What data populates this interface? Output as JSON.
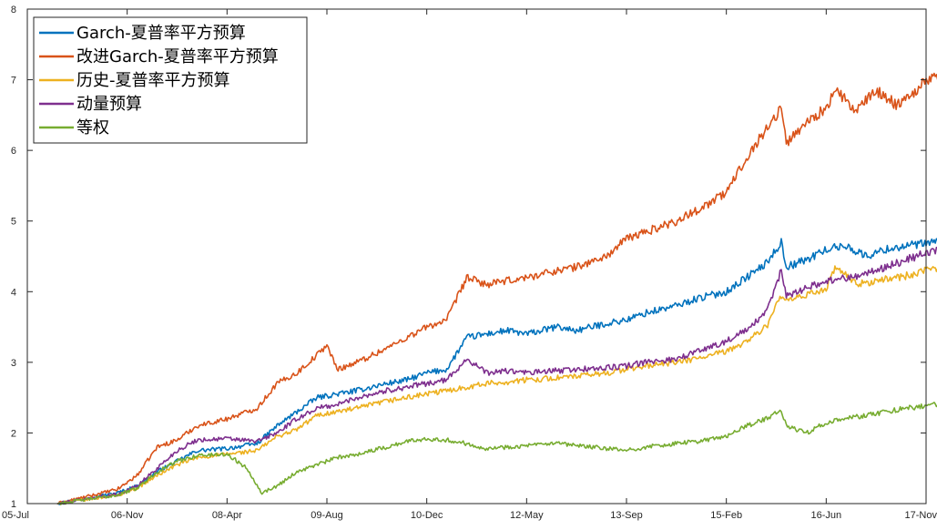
{
  "chart_data": {
    "type": "line",
    "title": "",
    "xlabel": "",
    "ylabel": "",
    "x_ticks": [
      "05-Jul",
      "06-Nov",
      "08-Apr",
      "09-Aug",
      "10-Dec",
      "12-May",
      "13-Sep",
      "15-Feb",
      "16-Jun",
      "17-Nov"
    ],
    "y_ticks": [
      "1",
      "2",
      "3",
      "4",
      "5",
      "6",
      "7",
      "8"
    ],
    "xlim": [
      0,
      9
    ],
    "ylim": [
      1,
      8
    ],
    "grid": false,
    "legend_position": "top-left",
    "series": [
      {
        "name": "Garch-夏普率平方预算",
        "color": "#0072BD",
        "points": [
          [
            0.3,
            1.0
          ],
          [
            0.6,
            1.08
          ],
          [
            0.9,
            1.15
          ],
          [
            1.1,
            1.25
          ],
          [
            1.3,
            1.45
          ],
          [
            1.5,
            1.6
          ],
          [
            1.7,
            1.75
          ],
          [
            2.0,
            1.78
          ],
          [
            2.3,
            1.85
          ],
          [
            2.5,
            2.1
          ],
          [
            2.7,
            2.3
          ],
          [
            2.9,
            2.5
          ],
          [
            3.1,
            2.55
          ],
          [
            3.3,
            2.6
          ],
          [
            3.6,
            2.7
          ],
          [
            3.8,
            2.75
          ],
          [
            4.0,
            2.85
          ],
          [
            4.2,
            2.9
          ],
          [
            4.4,
            3.35
          ],
          [
            4.6,
            3.4
          ],
          [
            4.8,
            3.45
          ],
          [
            5.0,
            3.4
          ],
          [
            5.3,
            3.5
          ],
          [
            5.5,
            3.45
          ],
          [
            5.8,
            3.55
          ],
          [
            6.0,
            3.6
          ],
          [
            6.2,
            3.7
          ],
          [
            6.5,
            3.8
          ],
          [
            6.7,
            3.9
          ],
          [
            7.0,
            4.0
          ],
          [
            7.2,
            4.2
          ],
          [
            7.4,
            4.4
          ],
          [
            7.55,
            4.7
          ],
          [
            7.6,
            4.35
          ],
          [
            7.8,
            4.45
          ],
          [
            8.0,
            4.6
          ],
          [
            8.2,
            4.65
          ],
          [
            8.4,
            4.5
          ],
          [
            8.6,
            4.6
          ],
          [
            8.8,
            4.65
          ],
          [
            9.0,
            4.68
          ],
          [
            9.15,
            4.72
          ]
        ]
      },
      {
        "name": "改进Garch-夏普率平方预算",
        "color": "#D95319",
        "points": [
          [
            0.3,
            1.0
          ],
          [
            0.6,
            1.1
          ],
          [
            0.9,
            1.2
          ],
          [
            1.1,
            1.4
          ],
          [
            1.3,
            1.8
          ],
          [
            1.5,
            1.9
          ],
          [
            1.7,
            2.1
          ],
          [
            2.0,
            2.2
          ],
          [
            2.3,
            2.35
          ],
          [
            2.5,
            2.7
          ],
          [
            2.7,
            2.85
          ],
          [
            2.9,
            3.1
          ],
          [
            3.0,
            3.25
          ],
          [
            3.1,
            2.9
          ],
          [
            3.3,
            3.0
          ],
          [
            3.6,
            3.2
          ],
          [
            3.8,
            3.35
          ],
          [
            4.0,
            3.5
          ],
          [
            4.2,
            3.6
          ],
          [
            4.4,
            4.2
          ],
          [
            4.6,
            4.1
          ],
          [
            4.8,
            4.15
          ],
          [
            5.0,
            4.2
          ],
          [
            5.3,
            4.3
          ],
          [
            5.5,
            4.35
          ],
          [
            5.8,
            4.5
          ],
          [
            6.0,
            4.75
          ],
          [
            6.2,
            4.85
          ],
          [
            6.5,
            5.0
          ],
          [
            6.7,
            5.15
          ],
          [
            7.0,
            5.4
          ],
          [
            7.2,
            5.9
          ],
          [
            7.4,
            6.3
          ],
          [
            7.55,
            6.6
          ],
          [
            7.6,
            6.1
          ],
          [
            7.8,
            6.4
          ],
          [
            8.0,
            6.6
          ],
          [
            8.1,
            6.85
          ],
          [
            8.3,
            6.55
          ],
          [
            8.5,
            6.85
          ],
          [
            8.7,
            6.65
          ],
          [
            8.9,
            6.85
          ],
          [
            9.0,
            7.0
          ],
          [
            9.15,
            7.05
          ]
        ]
      },
      {
        "name": "历史-夏普率平方预算",
        "color": "#EDB120",
        "points": [
          [
            0.3,
            1.0
          ],
          [
            0.6,
            1.06
          ],
          [
            0.9,
            1.12
          ],
          [
            1.1,
            1.22
          ],
          [
            1.3,
            1.4
          ],
          [
            1.5,
            1.55
          ],
          [
            1.7,
            1.65
          ],
          [
            2.0,
            1.7
          ],
          [
            2.3,
            1.75
          ],
          [
            2.5,
            1.95
          ],
          [
            2.7,
            2.05
          ],
          [
            2.9,
            2.25
          ],
          [
            3.1,
            2.3
          ],
          [
            3.3,
            2.35
          ],
          [
            3.6,
            2.45
          ],
          [
            3.8,
            2.5
          ],
          [
            4.0,
            2.55
          ],
          [
            4.2,
            2.6
          ],
          [
            4.4,
            2.65
          ],
          [
            4.6,
            2.7
          ],
          [
            4.8,
            2.72
          ],
          [
            5.0,
            2.75
          ],
          [
            5.3,
            2.78
          ],
          [
            5.5,
            2.8
          ],
          [
            5.8,
            2.85
          ],
          [
            6.0,
            2.9
          ],
          [
            6.2,
            2.95
          ],
          [
            6.5,
            3.0
          ],
          [
            6.7,
            3.05
          ],
          [
            7.0,
            3.15
          ],
          [
            7.2,
            3.3
          ],
          [
            7.4,
            3.5
          ],
          [
            7.55,
            3.95
          ],
          [
            7.6,
            3.85
          ],
          [
            7.8,
            3.95
          ],
          [
            8.0,
            4.05
          ],
          [
            8.1,
            4.35
          ],
          [
            8.3,
            4.1
          ],
          [
            8.5,
            4.15
          ],
          [
            8.7,
            4.2
          ],
          [
            8.9,
            4.25
          ],
          [
            9.0,
            4.3
          ],
          [
            9.15,
            4.33
          ]
        ]
      },
      {
        "name": "动量预算",
        "color": "#7E2F8E",
        "points": [
          [
            0.3,
            1.0
          ],
          [
            0.6,
            1.07
          ],
          [
            0.9,
            1.13
          ],
          [
            1.1,
            1.25
          ],
          [
            1.3,
            1.5
          ],
          [
            1.5,
            1.75
          ],
          [
            1.7,
            1.9
          ],
          [
            2.0,
            1.92
          ],
          [
            2.3,
            1.88
          ],
          [
            2.5,
            2.0
          ],
          [
            2.7,
            2.2
          ],
          [
            2.9,
            2.35
          ],
          [
            3.1,
            2.4
          ],
          [
            3.3,
            2.5
          ],
          [
            3.6,
            2.6
          ],
          [
            3.8,
            2.65
          ],
          [
            4.0,
            2.7
          ],
          [
            4.2,
            2.75
          ],
          [
            4.4,
            3.05
          ],
          [
            4.6,
            2.85
          ],
          [
            4.8,
            2.88
          ],
          [
            5.0,
            2.85
          ],
          [
            5.3,
            2.88
          ],
          [
            5.5,
            2.9
          ],
          [
            5.8,
            2.92
          ],
          [
            6.0,
            2.95
          ],
          [
            6.2,
            3.0
          ],
          [
            6.5,
            3.05
          ],
          [
            6.7,
            3.15
          ],
          [
            7.0,
            3.3
          ],
          [
            7.2,
            3.45
          ],
          [
            7.4,
            3.7
          ],
          [
            7.55,
            4.3
          ],
          [
            7.6,
            3.95
          ],
          [
            7.8,
            4.05
          ],
          [
            8.0,
            4.15
          ],
          [
            8.2,
            4.2
          ],
          [
            8.4,
            4.25
          ],
          [
            8.6,
            4.35
          ],
          [
            8.8,
            4.45
          ],
          [
            9.0,
            4.55
          ],
          [
            9.15,
            4.6
          ]
        ]
      },
      {
        "name": "等权",
        "color": "#77AC30",
        "points": [
          [
            0.3,
            1.0
          ],
          [
            0.6,
            1.06
          ],
          [
            0.9,
            1.12
          ],
          [
            1.1,
            1.22
          ],
          [
            1.3,
            1.45
          ],
          [
            1.5,
            1.6
          ],
          [
            1.7,
            1.68
          ],
          [
            2.0,
            1.7
          ],
          [
            2.2,
            1.5
          ],
          [
            2.35,
            1.15
          ],
          [
            2.5,
            1.25
          ],
          [
            2.7,
            1.45
          ],
          [
            2.9,
            1.55
          ],
          [
            3.1,
            1.65
          ],
          [
            3.3,
            1.7
          ],
          [
            3.6,
            1.8
          ],
          [
            3.8,
            1.88
          ],
          [
            4.0,
            1.92
          ],
          [
            4.2,
            1.9
          ],
          [
            4.4,
            1.85
          ],
          [
            4.6,
            1.78
          ],
          [
            4.8,
            1.8
          ],
          [
            5.0,
            1.82
          ],
          [
            5.3,
            1.85
          ],
          [
            5.5,
            1.82
          ],
          [
            5.8,
            1.78
          ],
          [
            6.0,
            1.75
          ],
          [
            6.2,
            1.8
          ],
          [
            6.5,
            1.85
          ],
          [
            6.7,
            1.88
          ],
          [
            7.0,
            1.95
          ],
          [
            7.2,
            2.1
          ],
          [
            7.4,
            2.2
          ],
          [
            7.55,
            2.32
          ],
          [
            7.6,
            2.1
          ],
          [
            7.8,
            2.0
          ],
          [
            8.0,
            2.15
          ],
          [
            8.2,
            2.2
          ],
          [
            8.4,
            2.25
          ],
          [
            8.6,
            2.3
          ],
          [
            8.8,
            2.35
          ],
          [
            9.0,
            2.38
          ],
          [
            9.15,
            2.42
          ]
        ]
      }
    ]
  }
}
